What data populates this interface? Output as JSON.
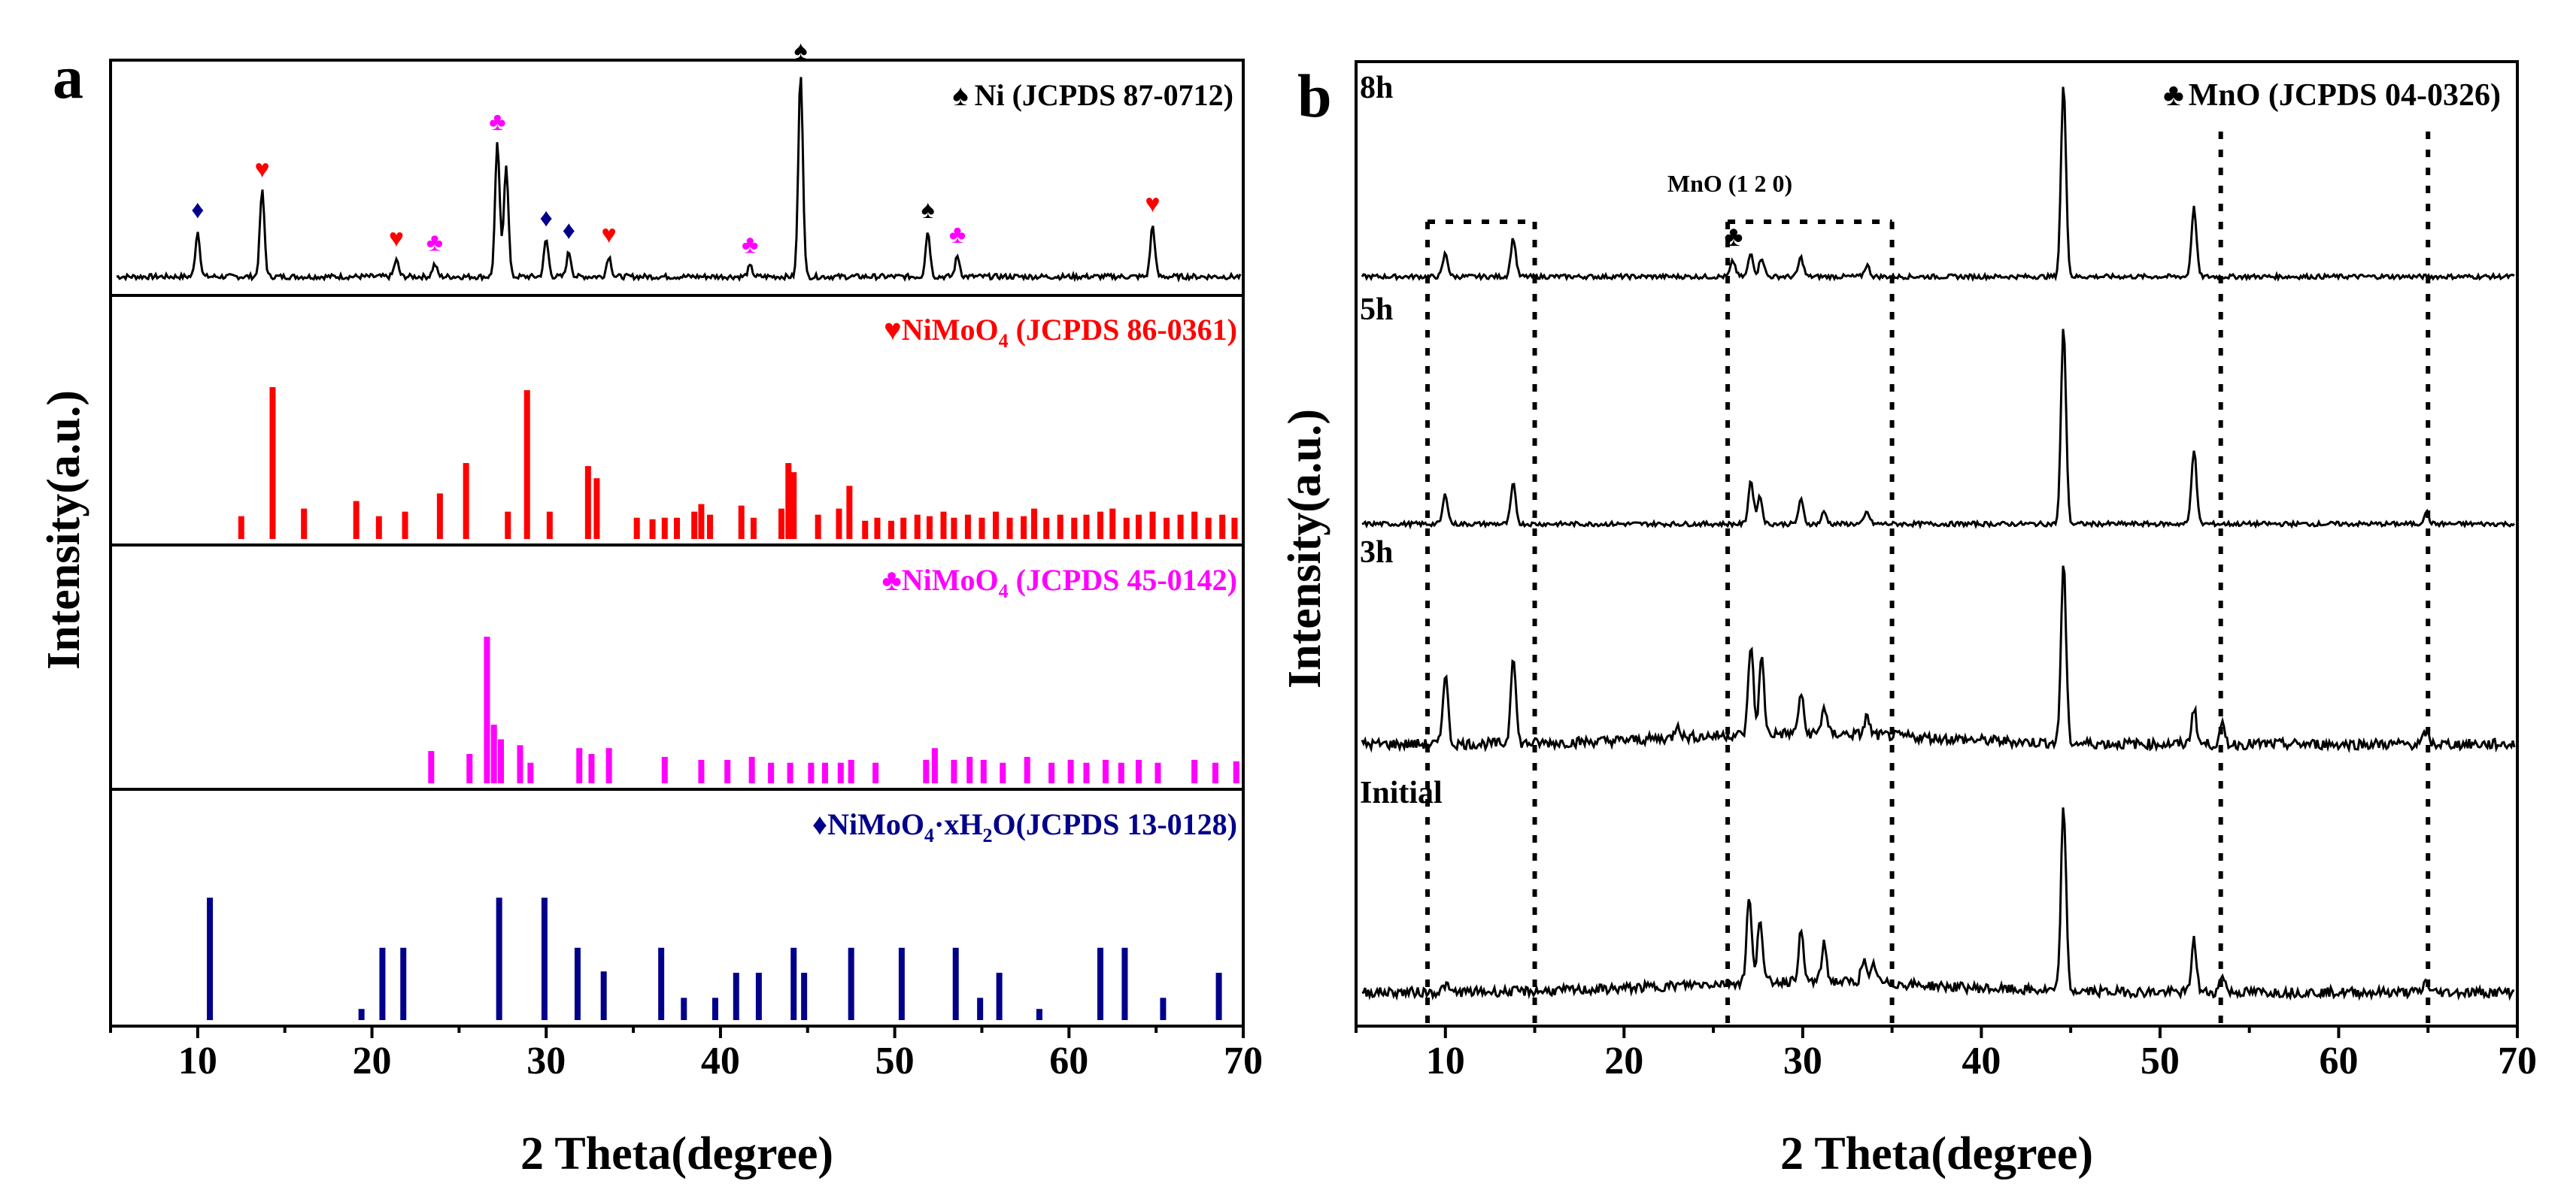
{
  "colors": {
    "ni": "#000000",
    "nimoo4_a": "#ff0000",
    "nimoo4_b": "#ff00ff",
    "hydrate": "#00008b",
    "axis": "#000000"
  },
  "chart_data": [
    {
      "type": "stacked-xrd",
      "panel_label": "a",
      "xlabel": "2 Theta(degree)",
      "ylabel": "Intensity(a.u.)",
      "xlim": [
        5,
        70
      ],
      "xticks": [
        "10",
        "20",
        "30",
        "40",
        "50",
        "60",
        "70"
      ],
      "xtick_values": [
        10,
        20,
        30,
        40,
        50,
        60,
        70
      ],
      "measured": {
        "legend": "Ni (JCPDS 87-0712)",
        "legend_symbol": "♠",
        "peaks": [
          [
            10.0,
            0.22
          ],
          [
            13.7,
            0.42
          ],
          [
            21.4,
            0.08
          ],
          [
            23.6,
            0.06
          ],
          [
            27.2,
            0.65
          ],
          [
            27.7,
            0.55
          ],
          [
            30.0,
            0.18
          ],
          [
            31.3,
            0.12
          ],
          [
            33.6,
            0.1
          ],
          [
            41.7,
            0.05
          ],
          [
            44.6,
            1.0
          ],
          [
            51.9,
            0.22
          ],
          [
            53.6,
            0.1
          ],
          [
            64.8,
            0.25
          ]
        ],
        "markers": [
          {
            "symbol": "♦",
            "x": 10.0,
            "series": "hydrate"
          },
          {
            "symbol": "♥",
            "x": 13.7,
            "series": "nimoo4_a"
          },
          {
            "symbol": "♥",
            "x": 21.4,
            "series": "nimoo4_a"
          },
          {
            "symbol": "♣",
            "x": 23.6,
            "series": "nimoo4_b"
          },
          {
            "symbol": "♣",
            "x": 27.2,
            "series": "nimoo4_b"
          },
          {
            "symbol": "♦",
            "x": 30.0,
            "series": "hydrate"
          },
          {
            "symbol": "♦",
            "x": 31.3,
            "series": "hydrate"
          },
          {
            "symbol": "♥",
            "x": 33.6,
            "series": "nimoo4_a"
          },
          {
            "symbol": "♣",
            "x": 41.7,
            "series": "nimoo4_b"
          },
          {
            "symbol": "♠",
            "x": 44.6,
            "series": "ni"
          },
          {
            "symbol": "♠",
            "x": 51.9,
            "series": "ni"
          },
          {
            "symbol": "♣",
            "x": 53.6,
            "series": "nimoo4_b"
          },
          {
            "symbol": "♥",
            "x": 64.8,
            "series": "nimoo4_a"
          }
        ]
      },
      "references": [
        {
          "name": "NiMoO4 (JCPDS 86-0361)",
          "legend_symbol": "♥",
          "legend_main": "NiMoO",
          "legend_sub": "4",
          "legend_rest": " (JCPDS 86-0361)",
          "color_key": "nimoo4_a",
          "lines": [
            [
              12.5,
              0.15
            ],
            [
              14.3,
              1.0
            ],
            [
              16.1,
              0.2
            ],
            [
              19.1,
              0.25
            ],
            [
              20.4,
              0.15
            ],
            [
              21.9,
              0.18
            ],
            [
              23.9,
              0.3
            ],
            [
              25.4,
              0.5
            ],
            [
              27.8,
              0.18
            ],
            [
              28.9,
              0.98
            ],
            [
              30.2,
              0.18
            ],
            [
              32.4,
              0.48
            ],
            [
              32.9,
              0.4
            ],
            [
              35.2,
              0.14
            ],
            [
              36.1,
              0.13
            ],
            [
              36.8,
              0.14
            ],
            [
              37.5,
              0.14
            ],
            [
              38.5,
              0.18
            ],
            [
              38.9,
              0.23
            ],
            [
              39.4,
              0.16
            ],
            [
              41.2,
              0.22
            ],
            [
              41.9,
              0.14
            ],
            [
              43.5,
              0.2
            ],
            [
              43.9,
              0.5
            ],
            [
              44.2,
              0.44
            ],
            [
              45.6,
              0.16
            ],
            [
              46.8,
              0.2
            ],
            [
              47.4,
              0.35
            ],
            [
              48.3,
              0.12
            ],
            [
              49.0,
              0.14
            ],
            [
              49.8,
              0.12
            ],
            [
              50.5,
              0.14
            ],
            [
              51.3,
              0.16
            ],
            [
              52.0,
              0.15
            ],
            [
              52.8,
              0.18
            ],
            [
              53.4,
              0.14
            ],
            [
              54.2,
              0.16
            ],
            [
              55.0,
              0.14
            ],
            [
              55.8,
              0.18
            ],
            [
              56.6,
              0.14
            ],
            [
              57.4,
              0.15
            ],
            [
              58.0,
              0.2
            ],
            [
              58.7,
              0.14
            ],
            [
              59.5,
              0.16
            ],
            [
              60.3,
              0.14
            ],
            [
              61.0,
              0.16
            ],
            [
              61.8,
              0.18
            ],
            [
              62.5,
              0.2
            ],
            [
              63.3,
              0.14
            ],
            [
              64.0,
              0.16
            ],
            [
              64.8,
              0.18
            ],
            [
              65.6,
              0.14
            ],
            [
              66.4,
              0.16
            ],
            [
              67.2,
              0.18
            ],
            [
              68.0,
              0.14
            ],
            [
              68.8,
              0.16
            ],
            [
              69.5,
              0.14
            ]
          ]
        },
        {
          "name": "NiMoO4 (JCPDS 45-0142)",
          "legend_symbol": "♣",
          "legend_main": "NiMoO",
          "legend_sub": "4",
          "legend_rest": " (JCPDS 45-0142)",
          "color_key": "nimoo4_b",
          "lines": [
            [
              23.4,
              0.22
            ],
            [
              25.6,
              0.2
            ],
            [
              26.6,
              1.0
            ],
            [
              27.0,
              0.4
            ],
            [
              27.4,
              0.3
            ],
            [
              28.5,
              0.26
            ],
            [
              29.1,
              0.14
            ],
            [
              31.9,
              0.24
            ],
            [
              32.6,
              0.2
            ],
            [
              33.6,
              0.24
            ],
            [
              36.8,
              0.18
            ],
            [
              38.9,
              0.16
            ],
            [
              40.4,
              0.16
            ],
            [
              41.8,
              0.18
            ],
            [
              42.9,
              0.14
            ],
            [
              44.0,
              0.14
            ],
            [
              45.2,
              0.14
            ],
            [
              46.0,
              0.14
            ],
            [
              46.9,
              0.14
            ],
            [
              47.5,
              0.16
            ],
            [
              48.9,
              0.14
            ],
            [
              51.8,
              0.16
            ],
            [
              52.3,
              0.24
            ],
            [
              53.4,
              0.16
            ],
            [
              54.3,
              0.18
            ],
            [
              55.1,
              0.16
            ],
            [
              56.2,
              0.14
            ],
            [
              57.6,
              0.18
            ],
            [
              59.0,
              0.14
            ],
            [
              60.1,
              0.16
            ],
            [
              61.0,
              0.14
            ],
            [
              62.1,
              0.16
            ],
            [
              63.0,
              0.14
            ],
            [
              64.0,
              0.16
            ],
            [
              65.1,
              0.14
            ],
            [
              67.2,
              0.16
            ],
            [
              68.4,
              0.14
            ],
            [
              69.6,
              0.15
            ]
          ]
        },
        {
          "name": "NiMoO4·xH2O(JCPDS 13-0128)",
          "legend_symbol": "♦",
          "legend_main": "NiMoO",
          "legend_sub": "4",
          "legend_mid": "·xH",
          "legend_sub2": "2",
          "legend_rest": "O(JCPDS 13-0128)",
          "color_key": "hydrate",
          "lines": [
            [
              10.7,
              0.88
            ],
            [
              19.4,
              0.08
            ],
            [
              20.6,
              0.52
            ],
            [
              21.8,
              0.52
            ],
            [
              27.3,
              0.88
            ],
            [
              29.9,
              0.88
            ],
            [
              31.8,
              0.52
            ],
            [
              33.3,
              0.35
            ],
            [
              36.6,
              0.52
            ],
            [
              37.9,
              0.16
            ],
            [
              39.7,
              0.16
            ],
            [
              40.9,
              0.34
            ],
            [
              42.2,
              0.34
            ],
            [
              44.2,
              0.52
            ],
            [
              44.8,
              0.34
            ],
            [
              47.5,
              0.52
            ],
            [
              50.4,
              0.52
            ],
            [
              53.5,
              0.52
            ],
            [
              54.9,
              0.16
            ],
            [
              56.0,
              0.34
            ],
            [
              58.3,
              0.08
            ],
            [
              61.8,
              0.52
            ],
            [
              63.2,
              0.52
            ],
            [
              65.4,
              0.16
            ],
            [
              68.6,
              0.34
            ]
          ]
        }
      ]
    },
    {
      "type": "stacked-xrd",
      "panel_label": "b",
      "xlabel": "2 Theta(degree)",
      "ylabel": "Intensity(a.u.)",
      "xlim": [
        5,
        70
      ],
      "xticks": [
        "10",
        "20",
        "30",
        "40",
        "50",
        "60",
        "70"
      ],
      "xtick_values": [
        10,
        20,
        30,
        40,
        50,
        60,
        70
      ],
      "legend": "MnO (JCPDS 04-0326)",
      "legend_symbol": "♣",
      "annotation": "MnO (1 2 0)",
      "dashed_boxes": [
        [
          9.0,
          15.0
        ],
        [
          25.8,
          35.0
        ]
      ],
      "dotted_vlines": [
        53.4,
        65.0
      ],
      "curves": [
        {
          "name": "8h",
          "peaks": [
            [
              10.0,
              0.12
            ],
            [
              13.8,
              0.2
            ],
            [
              26.1,
              0.08
            ],
            [
              27.1,
              0.12
            ],
            [
              27.7,
              0.1
            ],
            [
              29.9,
              0.1
            ],
            [
              33.6,
              0.06
            ],
            [
              44.6,
              1.0
            ],
            [
              51.9,
              0.36
            ]
          ]
        },
        {
          "name": "5h",
          "peaks": [
            [
              10.0,
              0.15
            ],
            [
              13.8,
              0.2
            ],
            [
              27.1,
              0.22
            ],
            [
              27.6,
              0.14
            ],
            [
              29.9,
              0.12
            ],
            [
              31.2,
              0.06
            ],
            [
              33.6,
              0.06
            ],
            [
              44.6,
              1.0
            ],
            [
              51.9,
              0.38
            ],
            [
              64.9,
              0.06
            ]
          ]
        },
        {
          "name": "3h",
          "peaks": [
            [
              10.0,
              0.4
            ],
            [
              13.8,
              0.5
            ],
            [
              23.0,
              0.08
            ],
            [
              27.1,
              0.5
            ],
            [
              27.7,
              0.42
            ],
            [
              29.9,
              0.22
            ],
            [
              31.2,
              0.15
            ],
            [
              33.6,
              0.1
            ],
            [
              44.6,
              1.0
            ],
            [
              51.9,
              0.2
            ],
            [
              53.5,
              0.1
            ],
            [
              64.9,
              0.07
            ]
          ]
        },
        {
          "name": "Initial",
          "peaks": [
            [
              10.0,
              0.04
            ],
            [
              27.0,
              0.45
            ],
            [
              27.6,
              0.35
            ],
            [
              29.9,
              0.26
            ],
            [
              31.2,
              0.2
            ],
            [
              33.4,
              0.12
            ],
            [
              34.0,
              0.1
            ],
            [
              44.6,
              1.0
            ],
            [
              51.9,
              0.28
            ],
            [
              53.5,
              0.1
            ],
            [
              64.9,
              0.06
            ]
          ]
        }
      ]
    }
  ]
}
